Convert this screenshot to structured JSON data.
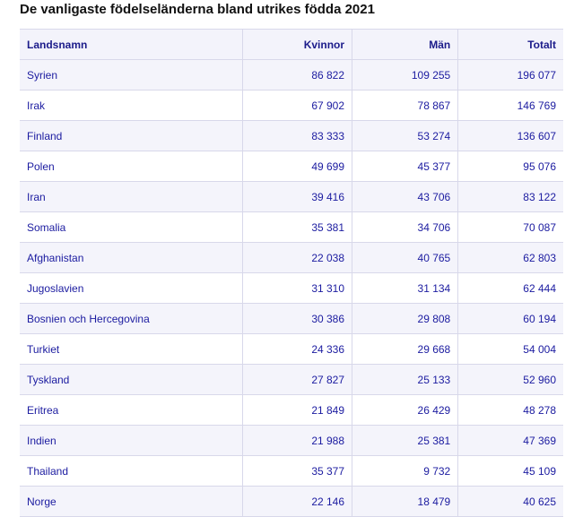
{
  "title": "De vanligaste födelseländerna bland utrikes födda 2021",
  "table": {
    "header": [
      "Landsnamn",
      "Kvinnor",
      "Män",
      "Totalt"
    ],
    "rows": [
      [
        "Syrien",
        "86 822",
        "109 255",
        "196 077"
      ],
      [
        "Irak",
        "67 902",
        "78 867",
        "146 769"
      ],
      [
        "Finland",
        "83 333",
        "53 274",
        "136 607"
      ],
      [
        "Polen",
        "49 699",
        "45 377",
        "95 076"
      ],
      [
        "Iran",
        "39 416",
        "43 706",
        "83 122"
      ],
      [
        "Somalia",
        "35 381",
        "34 706",
        "70 087"
      ],
      [
        "Afghanistan",
        "22 038",
        "40 765",
        "62 803"
      ],
      [
        "Jugoslavien",
        "31 310",
        "31 134",
        "62 444"
      ],
      [
        "Bosnien och Hercegovina",
        "30 386",
        "29 808",
        "60 194"
      ],
      [
        "Turkiet",
        "24 336",
        "29 668",
        "54 004"
      ],
      [
        "Tyskland",
        "27 827",
        "25 133",
        "52 960"
      ],
      [
        "Eritrea",
        "21 849",
        "26 429",
        "48 278"
      ],
      [
        "Indien",
        "21 988",
        "25 381",
        "47 369"
      ],
      [
        "Thailand",
        "35 377",
        "9 732",
        "45 109"
      ],
      [
        "Norge",
        "22 146",
        "18 479",
        "40 625"
      ]
    ]
  }
}
